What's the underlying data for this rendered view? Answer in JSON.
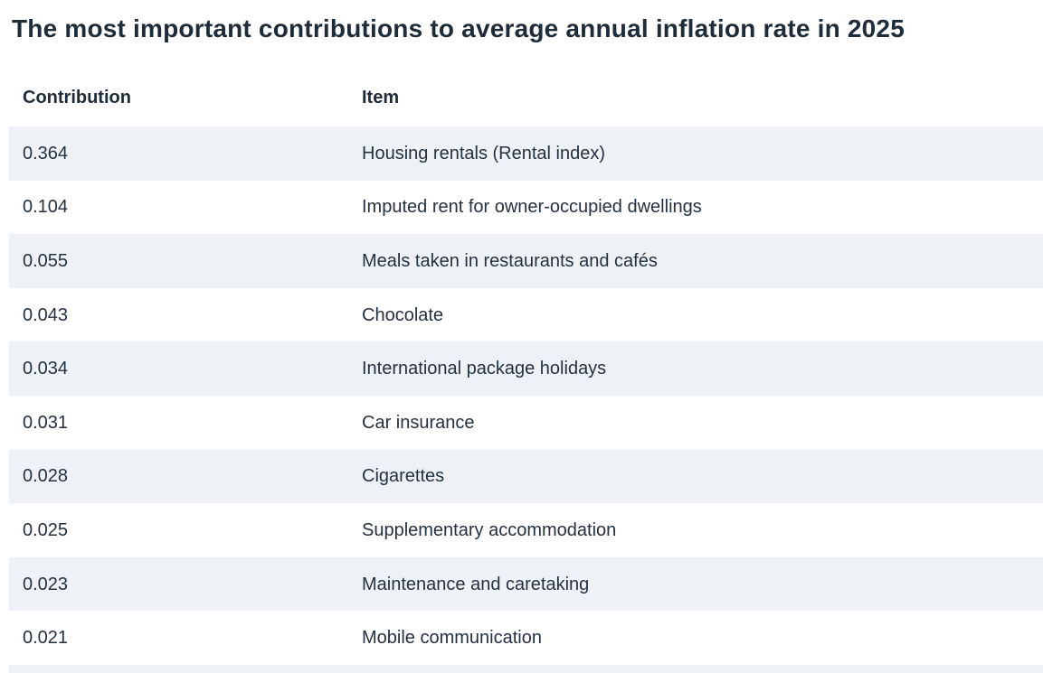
{
  "title": "The most important contributions to average annual inflation rate in 2025",
  "table": {
    "columns": [
      "Contribution",
      "Item"
    ],
    "rows": [
      {
        "contribution": "0.364",
        "item": "Housing rentals (Rental index)"
      },
      {
        "contribution": "0.104",
        "item": "Imputed rent for owner-occupied dwellings"
      },
      {
        "contribution": "0.055",
        "item": "Meals taken in restaurants and cafés"
      },
      {
        "contribution": "0.043",
        "item": "Chocolate"
      },
      {
        "contribution": "0.034",
        "item": "International package holidays"
      },
      {
        "contribution": "0.031",
        "item": "Car insurance"
      },
      {
        "contribution": "0.028",
        "item": "Cigarettes"
      },
      {
        "contribution": "0.025",
        "item": "Supplementary accommodation"
      },
      {
        "contribution": "0.023",
        "item": "Maintenance and caretaking"
      },
      {
        "contribution": "0.021",
        "item": "Mobile communication"
      }
    ]
  },
  "chart_data": {
    "type": "table",
    "title": "The most important contributions to average annual inflation rate in 2025",
    "columns": [
      "Contribution",
      "Item"
    ],
    "rows": [
      [
        0.364,
        "Housing rentals (Rental index)"
      ],
      [
        0.104,
        "Imputed rent for owner-occupied dwellings"
      ],
      [
        0.055,
        "Meals taken in restaurants and cafés"
      ],
      [
        0.043,
        "Chocolate"
      ],
      [
        0.034,
        "International package holidays"
      ],
      [
        0.031,
        "Car insurance"
      ],
      [
        0.028,
        "Cigarettes"
      ],
      [
        0.025,
        "Supplementary accommodation"
      ],
      [
        0.023,
        "Maintenance and caretaking"
      ],
      [
        0.021,
        "Mobile communication"
      ]
    ],
    "layout": {
      "zebra_striping": true,
      "first_row_striped": true
    }
  },
  "colors": {
    "stripe": "#eef2f6",
    "text": "#243140",
    "heading": "#1e2b39",
    "background": "#ffffff"
  }
}
